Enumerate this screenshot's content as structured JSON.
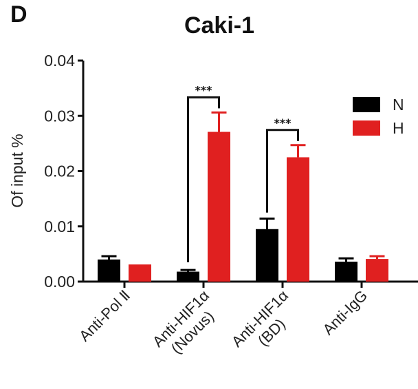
{
  "panel_label": "D",
  "chart_data": {
    "type": "bar",
    "title": "Caki-1",
    "xlabel": "",
    "ylabel": "Of input %",
    "ylim": [
      0,
      0.04
    ],
    "yticks": [
      "0.00",
      "0.01",
      "0.02",
      "0.03",
      "0.04"
    ],
    "grid": false,
    "legend_position": "upper right",
    "categories": [
      "Anti-Pol Ⅱ",
      "Anti-HIF1α (Novus)",
      "Anti-HIF1α (BD)",
      "Anti-IgG"
    ],
    "category_lines": [
      [
        "Anti-Pol Ⅱ"
      ],
      [
        "Anti-HIF1α",
        "(Novus)"
      ],
      [
        "Anti-HIF1α",
        "(BD)"
      ],
      [
        "Anti-IgG"
      ]
    ],
    "series": [
      {
        "name": "N",
        "color": "#000000",
        "values": [
          0.004,
          0.0018,
          0.0095,
          0.0036
        ],
        "errors": [
          0.0006,
          0.0003,
          0.0019,
          0.0006
        ]
      },
      {
        "name": "H",
        "color": "#e02020",
        "values": [
          0.0031,
          0.0271,
          0.0225,
          0.0041
        ],
        "errors": [
          0.0,
          0.0035,
          0.0022,
          0.0005
        ]
      }
    ],
    "annotations": [
      {
        "text": "***",
        "between": [
          "N",
          "H"
        ],
        "category": "Anti-HIF1α (Novus)"
      },
      {
        "text": "***",
        "between": [
          "N",
          "H"
        ],
        "category": "Anti-HIF1α (BD)"
      }
    ]
  }
}
